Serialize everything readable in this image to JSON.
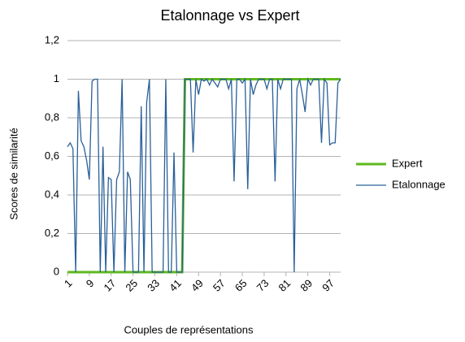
{
  "chart_data": {
    "type": "line",
    "title": "Etalonnage vs Expert",
    "xlabel": "Couples de représentations",
    "ylabel": "Scores de similarité",
    "x": [
      1,
      2,
      3,
      4,
      5,
      6,
      7,
      8,
      9,
      10,
      11,
      12,
      13,
      14,
      15,
      16,
      17,
      18,
      19,
      20,
      21,
      22,
      23,
      24,
      25,
      26,
      27,
      28,
      29,
      30,
      31,
      32,
      33,
      34,
      35,
      36,
      37,
      38,
      39,
      40,
      41,
      42,
      43,
      44,
      45,
      46,
      47,
      48,
      49,
      50,
      51,
      52,
      53,
      54,
      55,
      56,
      57,
      58,
      59,
      60,
      61,
      62,
      63,
      64,
      65,
      66,
      67,
      68,
      69,
      70,
      71,
      72,
      73,
      74,
      75,
      76,
      77,
      78,
      79,
      80,
      81,
      82,
      83,
      84,
      85,
      86,
      87,
      88,
      89,
      90,
      91,
      92,
      93,
      94,
      95,
      96,
      97,
      98,
      99,
      100,
      101
    ],
    "series": [
      {
        "name": "Expert",
        "color": "#5eb91e",
        "values": [
          0,
          0,
          0,
          0,
          0,
          0,
          0,
          0,
          0,
          0,
          0,
          0,
          0,
          0,
          0,
          0,
          0,
          0,
          0,
          0,
          0,
          0,
          0,
          0,
          0,
          0,
          0,
          0,
          0,
          0,
          0,
          0,
          0,
          0,
          0,
          0,
          0,
          0,
          0,
          0,
          0,
          0,
          0,
          1,
          1,
          1,
          1,
          1,
          1,
          1,
          1,
          1,
          1,
          1,
          1,
          1,
          1,
          1,
          1,
          1,
          1,
          1,
          1,
          1,
          1,
          1,
          1,
          1,
          1,
          1,
          1,
          1,
          1,
          1,
          1,
          1,
          1,
          1,
          1,
          1,
          1,
          1,
          1,
          1,
          1,
          1,
          1,
          1,
          1,
          1,
          1,
          1,
          1,
          1,
          1,
          1,
          1,
          1,
          1,
          1,
          1
        ]
      },
      {
        "name": "Etalonnage",
        "color": "#2a6099",
        "values": [
          0.65,
          0.67,
          0.64,
          0,
          0.94,
          0.68,
          0.65,
          0.58,
          0.48,
          0.99,
          1,
          1,
          0,
          0.65,
          0,
          0.49,
          0.48,
          0,
          0.48,
          0.52,
          1,
          0,
          0.52,
          0.48,
          0,
          0,
          0,
          0.86,
          0,
          0.88,
          1,
          0,
          0,
          0,
          0,
          0,
          1,
          0,
          0,
          0.62,
          0,
          0,
          0,
          1,
          1,
          1,
          0.62,
          1,
          0.92,
          1,
          0.99,
          1,
          0.97,
          1,
          0.98,
          0.96,
          1,
          1,
          1,
          0.95,
          1,
          0.47,
          1,
          1,
          0.98,
          1,
          0.43,
          1,
          0.92,
          0.97,
          1,
          1,
          1,
          0.95,
          1,
          1,
          0.47,
          1,
          0.95,
          1,
          1,
          1,
          1,
          0,
          0.95,
          1,
          0.92,
          0.83,
          1,
          0.97,
          1,
          1,
          1,
          0.67,
          1,
          0.98,
          0.66,
          0.67,
          0.67,
          0.98,
          1
        ]
      }
    ],
    "xlim": [
      1,
      101
    ],
    "xticks": [
      1,
      9,
      17,
      25,
      33,
      41,
      49,
      57,
      65,
      73,
      81,
      89,
      97
    ],
    "ylim": [
      0,
      1.2
    ],
    "yticks": [
      0,
      {
        "value": 0.2,
        "label": "0,2"
      },
      {
        "value": 0.4,
        "label": "0,4"
      },
      {
        "value": 0.6,
        "label": "0,6"
      },
      {
        "value": 0.8,
        "label": "0,8"
      },
      1,
      {
        "value": 1.2,
        "label": "1,2"
      }
    ],
    "grid": true,
    "legend": "right"
  }
}
